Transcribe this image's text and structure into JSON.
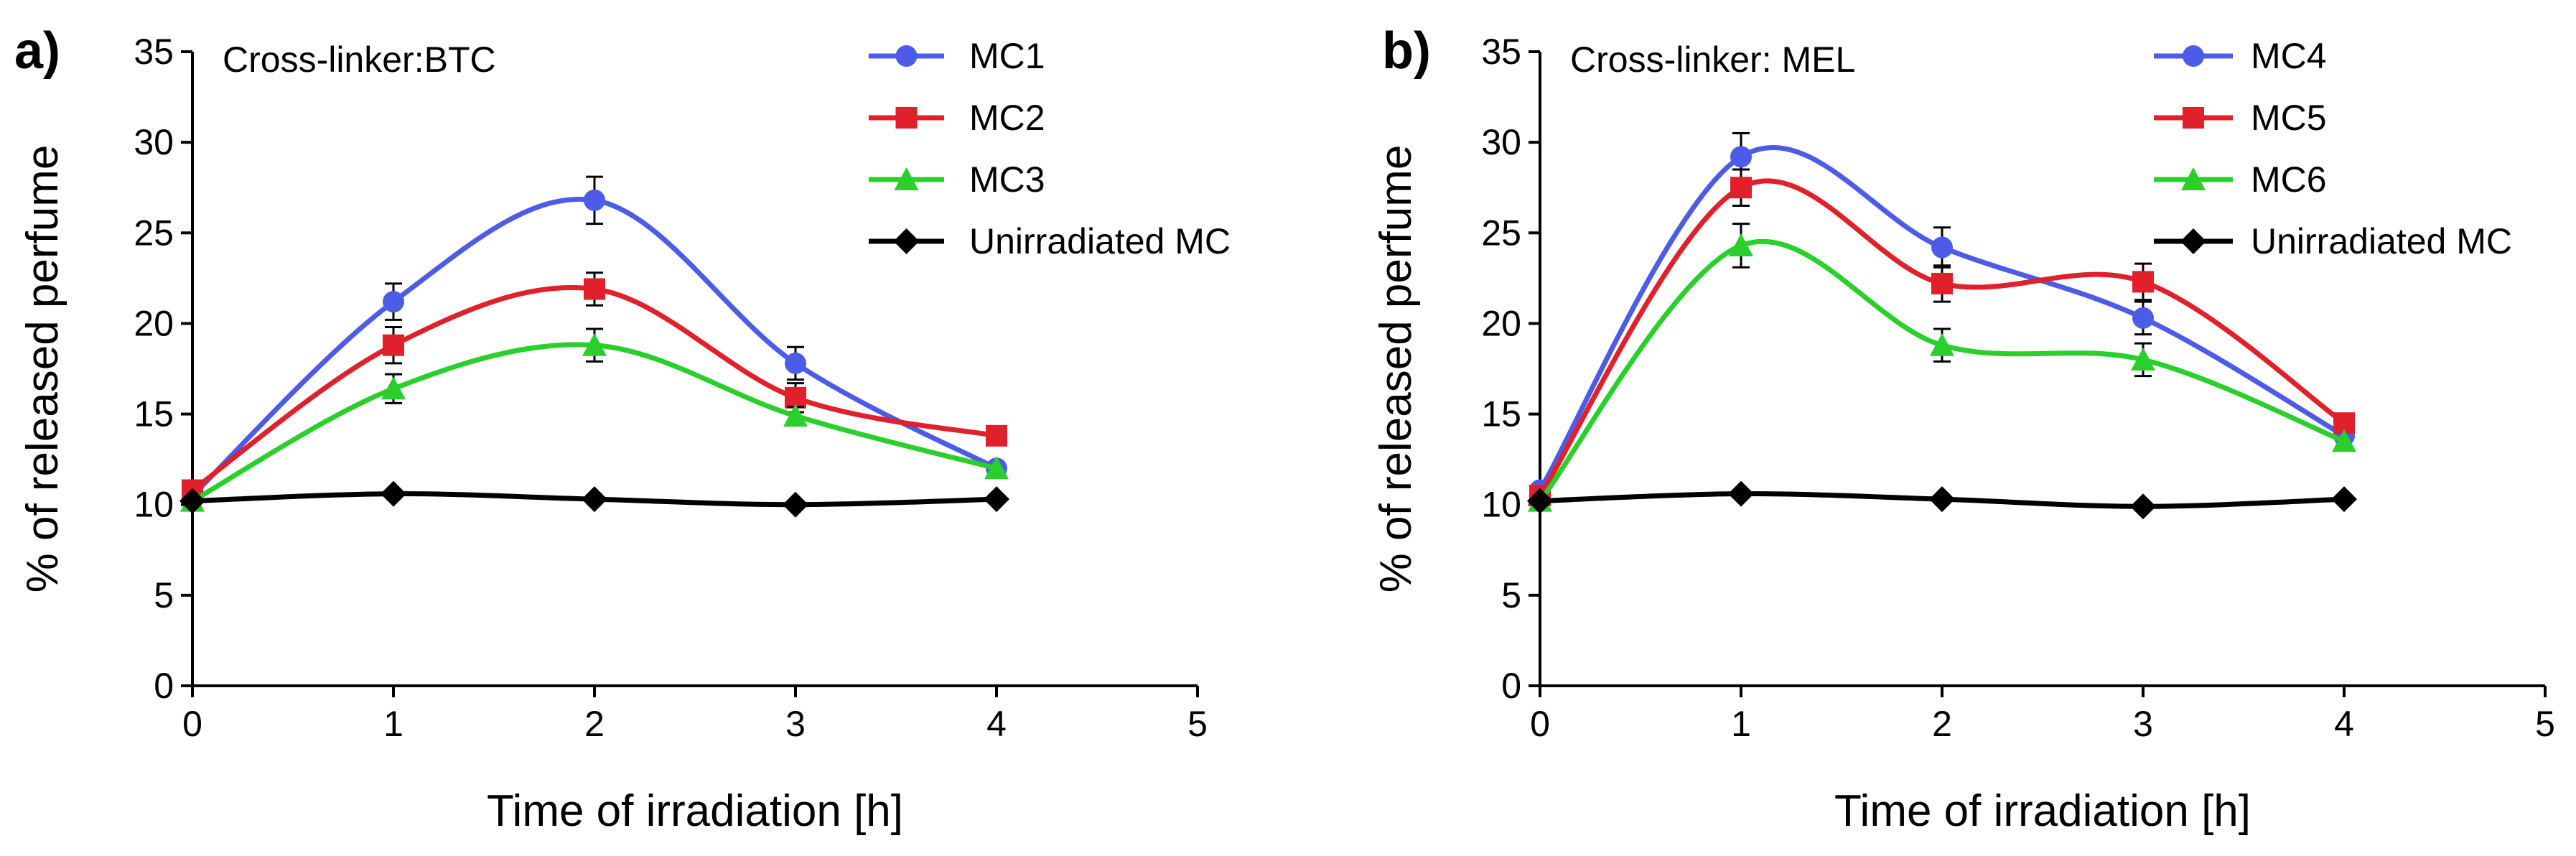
{
  "chart_data": [
    {
      "type": "line",
      "panel_label": "a)",
      "annotation": "Cross-linker:BTC",
      "title": "",
      "xlabel": "Time of irradiation [h]",
      "ylabel": "% of released perfume",
      "xlim": [
        0,
        5
      ],
      "ylim": [
        0,
        35
      ],
      "xticks": [
        "0",
        "1",
        "2",
        "3",
        "4",
        "5"
      ],
      "yticks": [
        "0",
        "5",
        "10",
        "15",
        "20",
        "25",
        "30",
        "35"
      ],
      "grid": false,
      "legend_position": "top-right",
      "x": [
        0,
        1,
        2,
        3,
        4
      ],
      "series": [
        {
          "name": "MC1",
          "color": "#4d5ce6",
          "marker": "circle",
          "values": [
            10.5,
            21.2,
            26.8,
            17.8,
            12.0
          ],
          "errors": [
            0.3,
            1.0,
            1.3,
            0.9,
            0.3
          ]
        },
        {
          "name": "MC2",
          "color": "#e0202a",
          "marker": "square",
          "values": [
            10.8,
            18.8,
            21.9,
            15.9,
            13.8
          ],
          "errors": [
            0.3,
            1.0,
            0.9,
            0.8,
            0.3
          ]
        },
        {
          "name": "MC3",
          "color": "#2bcf2b",
          "marker": "triangle",
          "values": [
            10.2,
            16.4,
            18.8,
            14.9,
            12.0
          ],
          "errors": [
            0.3,
            0.8,
            0.9,
            0.5,
            0.3
          ]
        },
        {
          "name": "Unirradiated MC",
          "color": "#000000",
          "marker": "diamond",
          "values": [
            10.2,
            10.6,
            10.3,
            10.0,
            10.3
          ],
          "errors": [
            0,
            0,
            0,
            0,
            0
          ]
        }
      ]
    },
    {
      "type": "line",
      "panel_label": "b)",
      "annotation": "Cross-linker: MEL",
      "title": "",
      "xlabel": "Time of irradiation [h]",
      "ylabel": "% of released perfume",
      "xlim": [
        0,
        5
      ],
      "ylim": [
        0,
        35
      ],
      "xticks": [
        "0",
        "1",
        "2",
        "3",
        "4",
        "5"
      ],
      "yticks": [
        "0",
        "5",
        "10",
        "15",
        "20",
        "25",
        "30",
        "35"
      ],
      "grid": false,
      "legend_position": "top-right",
      "x": [
        0,
        1,
        2,
        3,
        4
      ],
      "series": [
        {
          "name": "MC4",
          "color": "#4d5ce6",
          "marker": "circle",
          "values": [
            10.8,
            29.2,
            24.2,
            20.3,
            13.8
          ],
          "errors": [
            0.3,
            1.3,
            1.1,
            0.9,
            0.3
          ]
        },
        {
          "name": "MC5",
          "color": "#e0202a",
          "marker": "square",
          "values": [
            10.5,
            27.5,
            22.2,
            22.3,
            14.5
          ],
          "errors": [
            0.3,
            1.0,
            1.0,
            1.0,
            0.3
          ]
        },
        {
          "name": "MC6",
          "color": "#2bcf2b",
          "marker": "triangle",
          "values": [
            10.2,
            24.3,
            18.8,
            18.0,
            13.5
          ],
          "errors": [
            0.3,
            1.2,
            0.9,
            0.9,
            0.3
          ]
        },
        {
          "name": "Unirradiated MC",
          "color": "#000000",
          "marker": "diamond",
          "values": [
            10.2,
            10.6,
            10.3,
            9.9,
            10.3
          ],
          "errors": [
            0,
            0,
            0,
            0,
            0
          ]
        }
      ]
    }
  ]
}
